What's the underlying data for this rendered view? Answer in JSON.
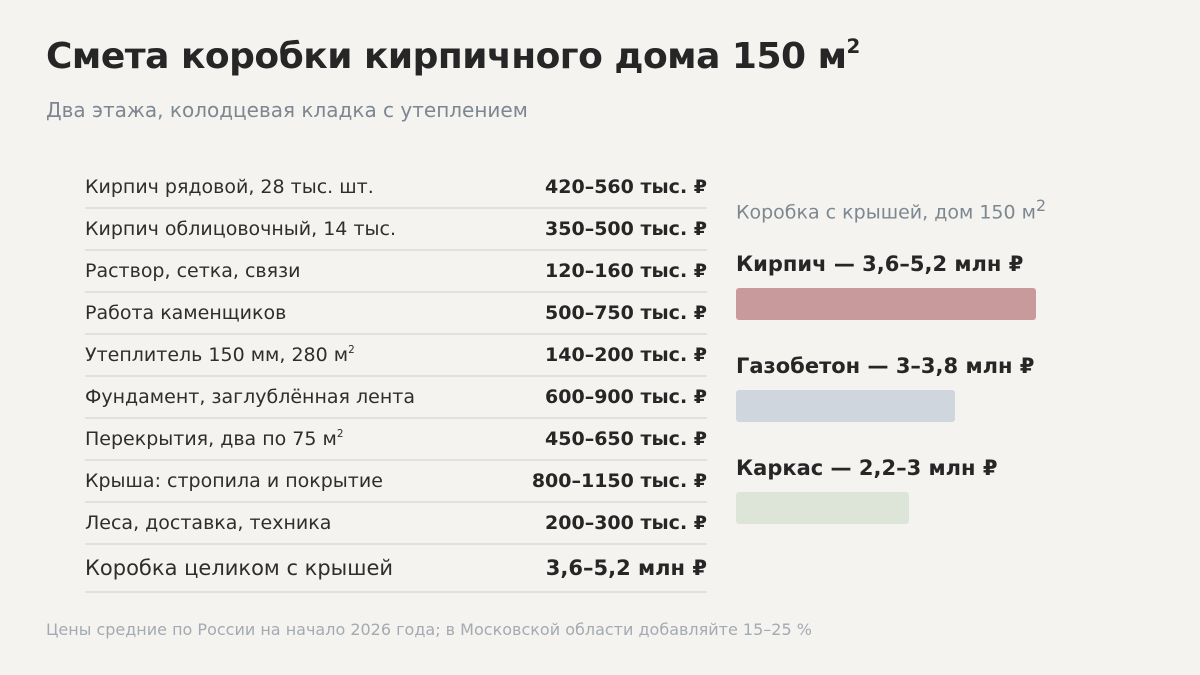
{
  "header": {
    "title": "Смета коробки кирпичного дома 150 м",
    "title_sup": "2",
    "subtitle": "Два этажа, колодцевая кладка с утеплением"
  },
  "estimate": {
    "rows": [
      {
        "label": "Кирпич рядовой, 28 тыс. шт.",
        "label_sup": "",
        "value": "420–560 тыс. ₽"
      },
      {
        "label": "Кирпич облицовочный, 14 тыс.",
        "label_sup": "",
        "value": "350–500 тыс. ₽"
      },
      {
        "label": "Раствор, сетка, связи",
        "label_sup": "",
        "value": "120–160 тыс. ₽"
      },
      {
        "label": "Работа каменщиков",
        "label_sup": "",
        "value": "500–750 тыс. ₽"
      },
      {
        "label": "Утеплитель 150 мм, 280 м",
        "label_sup": "2",
        "value": "140–200 тыс. ₽"
      },
      {
        "label": "Фундамент, заглублённая лента",
        "label_sup": "",
        "value": "600–900 тыс. ₽"
      },
      {
        "label": "Перекрытия, два по 75 м",
        "label_sup": "2",
        "value": "450–650 тыс. ₽"
      },
      {
        "label": "Крыша: стропила и покрытие",
        "label_sup": "",
        "value": "800–1150 тыс. ₽"
      },
      {
        "label": "Леса, доставка, техника",
        "label_sup": "",
        "value": "200–300 тыс. ₽"
      }
    ],
    "total": {
      "label": "Коробка целиком с крышей",
      "value": "3,6–5,2 млн ₽"
    }
  },
  "comparison": {
    "title": "Коробка с крышей, дом 150 м",
    "title_sup": "2",
    "max_value_mln": 5.2,
    "items": [
      {
        "label": "Кирпич — 3,6–5,2 млн ₽",
        "max_mln": 5.2,
        "color": "#c99a9b"
      },
      {
        "label": "Газобетон — 3–3,8 млн ₽",
        "max_mln": 3.8,
        "color": "#d0d6dd"
      },
      {
        "label": "Каркас — 2,2–3 млн ₽",
        "max_mln": 3.0,
        "color": "#dde5d9"
      }
    ]
  },
  "footnote": "Цены средние по России на начало 2026 года; в Московской области добавляйте 15–25 %"
}
